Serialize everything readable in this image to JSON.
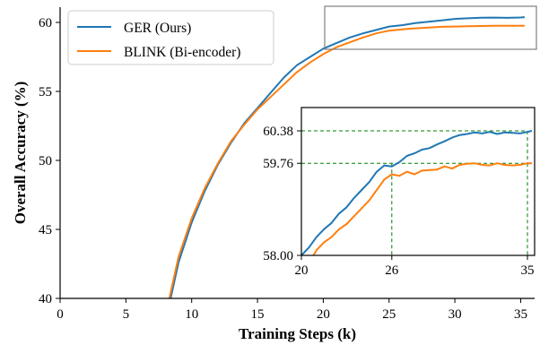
{
  "chart_data": {
    "type": "line",
    "xlabel": "Training Steps (k)",
    "ylabel": "Overall Accuracy (%)",
    "xlim": [
      0,
      36
    ],
    "ylim": [
      40,
      61
    ],
    "xticks": [
      "0",
      "5",
      "10",
      "15",
      "20",
      "25",
      "30",
      "35"
    ],
    "yticks": [
      "40",
      "45",
      "50",
      "55",
      "60"
    ],
    "legend_position": "top-left",
    "grid": false,
    "colors": {
      "ger": "#1f77b4",
      "blink": "#ff7f0e",
      "zoom_box": "#808080",
      "guide": "#008000"
    },
    "series": [
      {
        "name": "GER (Ours)",
        "x": [
          8.4,
          9,
          10,
          11,
          12,
          13,
          14,
          15,
          16,
          17,
          18,
          19,
          20,
          21,
          22,
          23,
          24,
          25,
          26,
          27,
          28,
          29,
          30,
          31,
          32,
          33,
          34,
          35,
          35.3
        ],
        "values": [
          40,
          42.6,
          45.5,
          47.8,
          49.7,
          51.3,
          52.7,
          53.8,
          54.9,
          56.0,
          56.9,
          57.5,
          58.1,
          58.5,
          58.9,
          59.2,
          59.45,
          59.7,
          59.8,
          59.95,
          60.05,
          60.15,
          60.25,
          60.3,
          60.34,
          60.35,
          60.33,
          60.36,
          60.38
        ]
      },
      {
        "name": "BLINK (Bi-encoder)",
        "x": [
          8.3,
          9,
          10,
          11,
          12,
          13,
          14,
          15,
          16,
          17,
          18,
          19,
          20,
          21,
          22,
          23,
          24,
          25,
          26,
          27,
          28,
          29,
          30,
          31,
          32,
          33,
          34,
          35,
          35.3
        ],
        "values": [
          40,
          43.0,
          45.8,
          48.0,
          49.8,
          51.4,
          52.6,
          53.7,
          54.6,
          55.5,
          56.4,
          57.1,
          57.7,
          58.2,
          58.55,
          58.9,
          59.2,
          59.4,
          59.5,
          59.57,
          59.63,
          59.68,
          59.7,
          59.72,
          59.74,
          59.75,
          59.75,
          59.76,
          59.76
        ]
      }
    ],
    "inset": {
      "xlim": [
        20,
        35.3
      ],
      "ylim": [
        58.0,
        60.5
      ],
      "xticks": [
        "20",
        "26",
        "35"
      ],
      "yticks": [
        "58.00",
        "59.76",
        "60.38"
      ],
      "guide_lines": {
        "x": [
          26,
          35
        ],
        "y": [
          59.76,
          60.38
        ]
      },
      "series": [
        {
          "name": "GER (Ours)",
          "x": [
            20,
            20.5,
            21,
            21.5,
            22,
            22.5,
            23,
            23.5,
            24,
            24.5,
            25,
            25.5,
            26,
            26.5,
            27,
            27.5,
            28,
            28.5,
            29,
            29.5,
            30,
            30.5,
            31,
            31.5,
            32,
            32.5,
            33,
            33.5,
            34,
            34.5,
            35,
            35.3
          ],
          "values": [
            58.0,
            58.15,
            58.35,
            58.5,
            58.62,
            58.8,
            58.92,
            59.1,
            59.25,
            59.4,
            59.6,
            59.72,
            59.7,
            59.78,
            59.9,
            59.95,
            60.02,
            60.05,
            60.12,
            60.18,
            60.25,
            60.3,
            60.32,
            60.35,
            60.33,
            60.36,
            60.32,
            60.35,
            60.34,
            60.33,
            60.36,
            60.38
          ]
        },
        {
          "name": "BLINK (Bi-encoder)",
          "x": [
            20.8,
            21,
            21.5,
            22,
            22.5,
            23,
            23.5,
            24,
            24.5,
            25,
            25.5,
            26,
            26.5,
            27,
            27.5,
            28,
            28.5,
            29,
            29.5,
            30,
            30.5,
            31,
            31.5,
            32,
            32.5,
            33,
            33.5,
            34,
            34.5,
            35,
            35.3
          ],
          "values": [
            58.0,
            58.1,
            58.25,
            58.35,
            58.5,
            58.6,
            58.75,
            58.9,
            59.05,
            59.25,
            59.45,
            59.55,
            59.52,
            59.6,
            59.55,
            59.62,
            59.63,
            59.64,
            59.7,
            59.66,
            59.73,
            59.75,
            59.76,
            59.73,
            59.72,
            59.76,
            59.73,
            59.72,
            59.73,
            59.76,
            59.76
          ]
        }
      ]
    }
  }
}
